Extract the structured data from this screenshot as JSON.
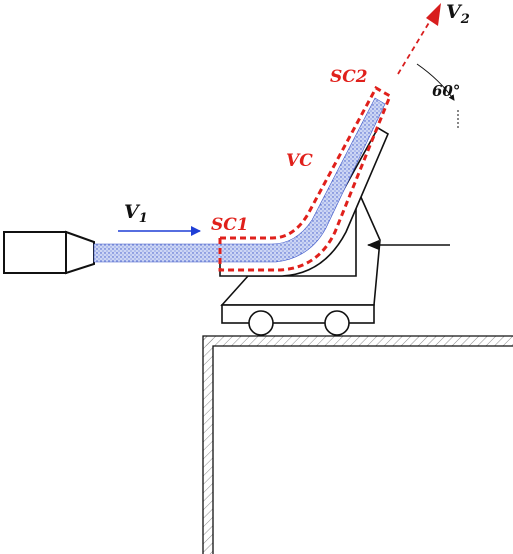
{
  "labels": {
    "v1_main": "V",
    "v1_sub": "1",
    "v2_main": "V",
    "v2_sub": "2",
    "sc1": "SC1",
    "sc2": "SC2",
    "vc": "VC",
    "angle": "60°"
  },
  "colors": {
    "jet_fill": "#c9d3f2",
    "jet_dots": "#3b55c8",
    "control_volume": "#e0201b",
    "inlet_velocity_arrow": "#1f3fd6",
    "outlet_velocity_arrow": "#d81e1e",
    "structure": "#111111",
    "hatch": "#8a8a8a"
  },
  "icons": {
    "nozzle": "nozzle-icon",
    "cart_wheels": "wheel-icon",
    "force_arrow": "arrow-left-icon"
  }
}
